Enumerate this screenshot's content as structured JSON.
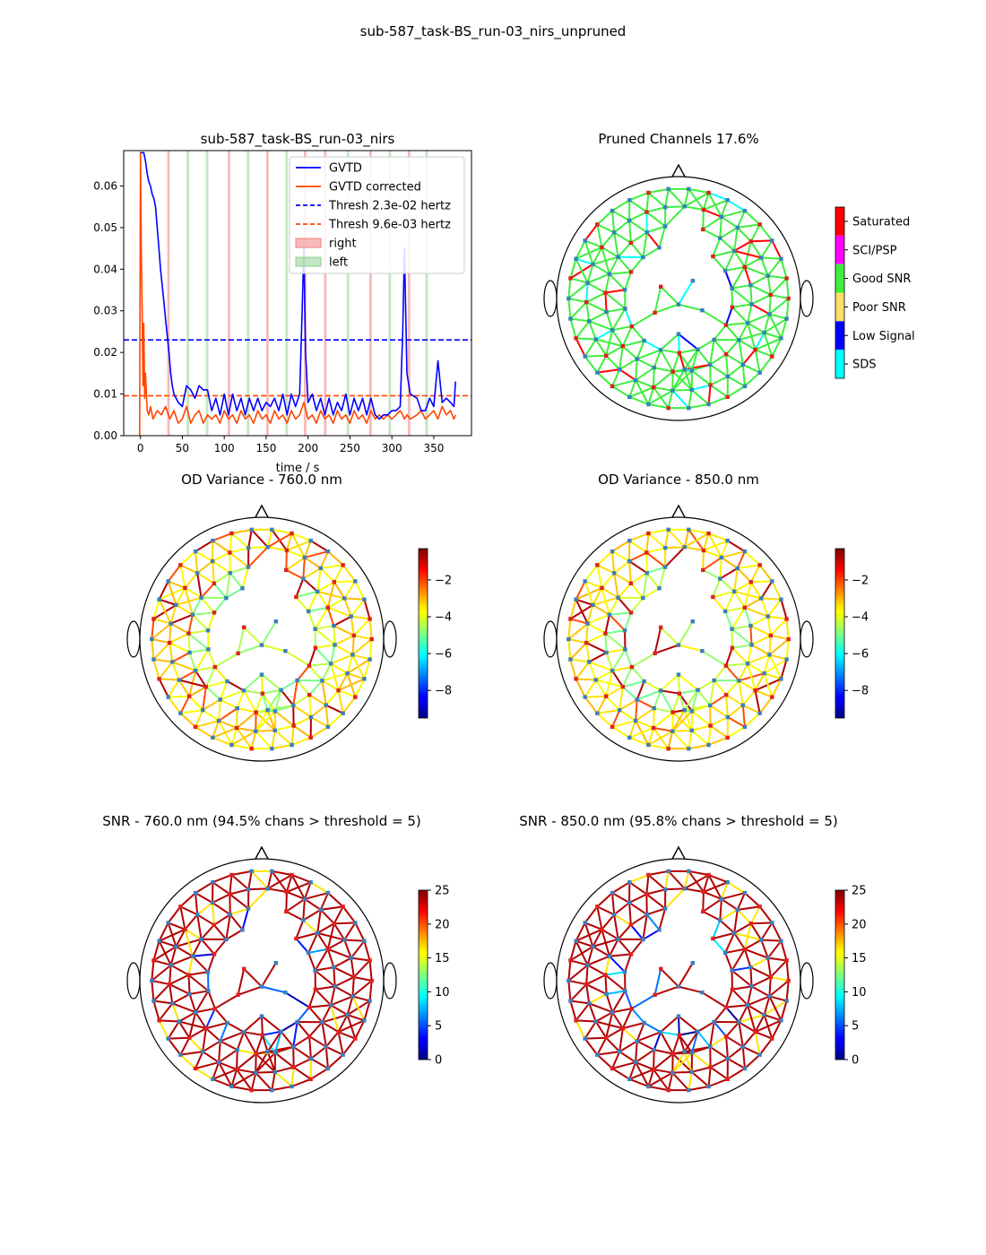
{
  "figure": {
    "suptitle": "sub-587_task-BS_run-03_nirs_unpruned"
  },
  "chart_data": [
    {
      "type": "line",
      "title": "sub-587_task-BS_run-03_nirs",
      "xlabel": "time / s",
      "ylabel": "",
      "xlim": [
        -20,
        395
      ],
      "ylim": [
        0,
        0.0685
      ],
      "xticks": [
        0,
        50,
        100,
        150,
        200,
        250,
        300,
        350
      ],
      "yticks": [
        0.0,
        0.01,
        0.02,
        0.03,
        0.04,
        0.05,
        0.06
      ],
      "ytick_labels": [
        "0.00",
        "0.01",
        "0.02",
        "0.03",
        "0.04",
        "0.05",
        "0.06"
      ],
      "legend_position": "top-right",
      "series": [
        {
          "name": "GVTD",
          "color": "#0000ff",
          "x": [
            0,
            2,
            4,
            6,
            8,
            10,
            12,
            14,
            16,
            18,
            20,
            22,
            24,
            26,
            28,
            30,
            32,
            34,
            36,
            38,
            40,
            45,
            50,
            55,
            60,
            65,
            70,
            75,
            80,
            85,
            90,
            95,
            100,
            105,
            110,
            115,
            120,
            125,
            130,
            135,
            140,
            145,
            150,
            155,
            160,
            165,
            170,
            175,
            180,
            185,
            190,
            193,
            195,
            197,
            200,
            205,
            210,
            215,
            220,
            225,
            230,
            235,
            240,
            245,
            250,
            255,
            260,
            265,
            270,
            275,
            280,
            285,
            290,
            295,
            300,
            305,
            310,
            313,
            315,
            318,
            322,
            330,
            335,
            340,
            345,
            350,
            355,
            360,
            365,
            370,
            374,
            376
          ],
          "y": [
            0.068,
            0.068,
            0.068,
            0.066,
            0.063,
            0.061,
            0.06,
            0.058,
            0.057,
            0.055,
            0.05,
            0.045,
            0.04,
            0.036,
            0.032,
            0.028,
            0.024,
            0.02,
            0.015,
            0.012,
            0.01,
            0.008,
            0.007,
            0.012,
            0.011,
            0.009,
            0.012,
            0.011,
            0.011,
            0.006,
            0.009,
            0.005,
            0.01,
            0.005,
            0.01,
            0.006,
            0.009,
            0.005,
            0.009,
            0.006,
            0.009,
            0.006,
            0.008,
            0.007,
            0.009,
            0.006,
            0.01,
            0.005,
            0.01,
            0.007,
            0.01,
            0.03,
            0.045,
            0.02,
            0.008,
            0.01,
            0.006,
            0.009,
            0.005,
            0.009,
            0.005,
            0.008,
            0.006,
            0.01,
            0.005,
            0.009,
            0.006,
            0.009,
            0.005,
            0.009,
            0.005,
            0.004,
            0.005,
            0.005,
            0.006,
            0.006,
            0.007,
            0.025,
            0.045,
            0.015,
            0.01,
            0.009,
            0.006,
            0.006,
            0.009,
            0.007,
            0.018,
            0.008,
            0.009,
            0.008,
            0.007,
            0.013
          ]
        },
        {
          "name": "GVTD corrected",
          "color": "#ff4500",
          "x": [
            -1,
            0,
            1,
            2,
            3,
            4,
            5,
            6,
            8,
            10,
            12,
            15,
            20,
            25,
            30,
            35,
            40,
            45,
            50,
            55,
            60,
            65,
            70,
            75,
            80,
            85,
            90,
            95,
            100,
            105,
            110,
            115,
            120,
            125,
            130,
            135,
            140,
            145,
            150,
            155,
            160,
            165,
            170,
            175,
            180,
            185,
            190,
            195,
            200,
            205,
            210,
            215,
            220,
            225,
            230,
            235,
            240,
            245,
            250,
            255,
            260,
            265,
            270,
            275,
            280,
            285,
            290,
            295,
            300,
            305,
            310,
            313,
            315,
            318,
            322,
            330,
            335,
            340,
            345,
            350,
            355,
            360,
            365,
            370,
            374,
            376
          ],
          "y": [
            0.0,
            0.068,
            0.045,
            0.03,
            0.012,
            0.027,
            0.009,
            0.015,
            0.006,
            0.005,
            0.007,
            0.004,
            0.006,
            0.005,
            0.007,
            0.004,
            0.006,
            0.003,
            0.004,
            0.007,
            0.003,
            0.005,
            0.006,
            0.003,
            0.005,
            0.004,
            0.005,
            0.003,
            0.006,
            0.004,
            0.005,
            0.003,
            0.006,
            0.004,
            0.005,
            0.003,
            0.006,
            0.004,
            0.005,
            0.003,
            0.006,
            0.004,
            0.005,
            0.003,
            0.006,
            0.004,
            0.005,
            0.008,
            0.004,
            0.005,
            0.003,
            0.006,
            0.004,
            0.005,
            0.003,
            0.006,
            0.004,
            0.005,
            0.003,
            0.006,
            0.004,
            0.005,
            0.003,
            0.006,
            0.004,
            0.005,
            0.004,
            0.005,
            0.004,
            0.005,
            0.006,
            0.005,
            0.004,
            0.005,
            0.004,
            0.005,
            0.006,
            0.004,
            0.005,
            0.006,
            0.004,
            0.007,
            0.005,
            0.006,
            0.004,
            0.005
          ]
        }
      ],
      "hlines": [
        {
          "name": "Thresh 2.3e-02 hertz",
          "y": 0.023,
          "color": "#0000ff",
          "style": "dashed"
        },
        {
          "name": "Thresh 9.6e-03 hertz",
          "y": 0.0096,
          "color": "#ff4500",
          "style": "dashed"
        }
      ],
      "spans": [
        {
          "name": "right",
          "color": "#f08080",
          "starts": [
            32,
            104,
            150,
            195,
            219,
            273,
            319
          ]
        },
        {
          "name": "left",
          "color": "#8fd18f",
          "starts": [
            55,
            78,
            127,
            173,
            246,
            296,
            340
          ]
        }
      ],
      "span_width": 3
    },
    {
      "type": "topomap",
      "title": "Pruned Channels 17.6%",
      "colorbar": {
        "kind": "categorical",
        "categories": [
          {
            "label": "Saturated",
            "color": "#ff0000"
          },
          {
            "label": "SCI/PSP",
            "color": "#ff00ff"
          },
          {
            "label": "Good SNR",
            "color": "#3cf03c"
          },
          {
            "label": "Poor SNR",
            "color": "#ffdd66"
          },
          {
            "label": "Low Signal",
            "color": "#0000ff"
          },
          {
            "label": "SDS",
            "color": "#00ffff"
          }
        ]
      }
    },
    {
      "type": "topomap",
      "title": "OD Variance - 760.0 nm",
      "colorbar": {
        "kind": "continuous",
        "colormap": "jet",
        "range": [
          -9.5,
          -0.3
        ],
        "ticks": [
          -2,
          -4,
          -6,
          -8
        ],
        "tick_labels": [
          "−2",
          "−4",
          "−6",
          "−8"
        ]
      }
    },
    {
      "type": "topomap",
      "title": "OD  Variance - 850.0 nm",
      "colorbar": {
        "kind": "continuous",
        "colormap": "jet",
        "range": [
          -9.5,
          -0.3
        ],
        "ticks": [
          -2,
          -4,
          -6,
          -8
        ],
        "tick_labels": [
          "−2",
          "−4",
          "−6",
          "−8"
        ]
      }
    },
    {
      "type": "topomap",
      "title": "SNR - 760.0 nm (94.5% chans > threshold = 5)",
      "colorbar": {
        "kind": "continuous",
        "colormap": "jet",
        "range": [
          0,
          25
        ],
        "ticks": [
          0,
          5,
          10,
          15,
          20,
          25
        ],
        "tick_labels": [
          "0",
          "5",
          "10",
          "15",
          "20",
          "25"
        ]
      }
    },
    {
      "type": "topomap",
      "title": "SNR - 850.0 nm (95.8% chans > threshold = 5)",
      "colorbar": {
        "kind": "continuous",
        "colormap": "jet",
        "range": [
          0,
          25
        ],
        "ticks": [
          0,
          5,
          10,
          15,
          20,
          25
        ],
        "tick_labels": [
          "0",
          "5",
          "10",
          "15",
          "20",
          "25"
        ]
      }
    }
  ]
}
